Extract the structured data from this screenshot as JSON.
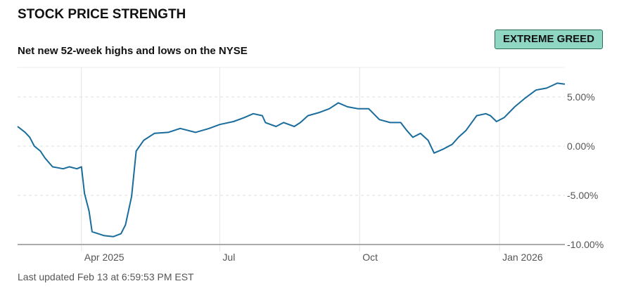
{
  "header": {
    "title": "STOCK PRICE STRENGTH",
    "subtitle": "Net new 52-week highs and lows on the NYSE",
    "badge": "EXTREME GREED",
    "badge_color": "#8fd6c3"
  },
  "footer": {
    "updated": "Last updated Feb 13 at 6:59:53 PM EST"
  },
  "chart_data": {
    "type": "line",
    "title": "",
    "xlabel": "",
    "ylabel": "",
    "xlim": [
      "2025-02-18",
      "2026-02-13"
    ],
    "ylim": [
      -10,
      8
    ],
    "grid": true,
    "line_color": "#1a6c9c",
    "y_ticks": [
      {
        "v": 5,
        "label": "5.00%"
      },
      {
        "v": 0,
        "label": "0.00%"
      },
      {
        "v": -5,
        "label": "-5.00%"
      },
      {
        "v": -10,
        "label": "-10.00%"
      }
    ],
    "x_ticks": [
      {
        "d": "2025-04-01",
        "label": "Apr 2025"
      },
      {
        "d": "2025-07-01",
        "label": "Jul"
      },
      {
        "d": "2025-10-01",
        "label": "Oct"
      },
      {
        "d": "2026-01-01",
        "label": "Jan 2026"
      }
    ],
    "points": [
      [
        "2025-02-18",
        2.0
      ],
      [
        "2025-02-23",
        1.4
      ],
      [
        "2025-02-26",
        0.9
      ],
      [
        "2025-03-01",
        0.0
      ],
      [
        "2025-03-05",
        -0.5
      ],
      [
        "2025-03-08",
        -1.2
      ],
      [
        "2025-03-13",
        -2.1
      ],
      [
        "2025-03-20",
        -2.3
      ],
      [
        "2025-03-24",
        -2.1
      ],
      [
        "2025-03-29",
        -2.3
      ],
      [
        "2025-04-01",
        -2.1
      ],
      [
        "2025-04-03",
        -4.8
      ],
      [
        "2025-04-06",
        -6.6
      ],
      [
        "2025-04-08",
        -8.7
      ],
      [
        "2025-04-12",
        -8.9
      ],
      [
        "2025-04-16",
        -9.1
      ],
      [
        "2025-04-22",
        -9.2
      ],
      [
        "2025-04-27",
        -8.9
      ],
      [
        "2025-04-30",
        -8.0
      ],
      [
        "2025-05-04",
        -5.1
      ],
      [
        "2025-05-07",
        -0.5
      ],
      [
        "2025-05-12",
        0.6
      ],
      [
        "2025-05-19",
        1.3
      ],
      [
        "2025-05-28",
        1.4
      ],
      [
        "2025-06-05",
        1.8
      ],
      [
        "2025-06-15",
        1.4
      ],
      [
        "2025-06-24",
        1.8
      ],
      [
        "2025-07-01",
        2.2
      ],
      [
        "2025-07-10",
        2.5
      ],
      [
        "2025-07-17",
        2.9
      ],
      [
        "2025-07-23",
        3.3
      ],
      [
        "2025-07-29",
        3.1
      ],
      [
        "2025-07-31",
        2.4
      ],
      [
        "2025-08-07",
        2.0
      ],
      [
        "2025-08-12",
        2.4
      ],
      [
        "2025-08-19",
        2.0
      ],
      [
        "2025-08-23",
        2.4
      ],
      [
        "2025-08-28",
        3.1
      ],
      [
        "2025-09-04",
        3.4
      ],
      [
        "2025-09-11",
        3.8
      ],
      [
        "2025-09-17",
        4.4
      ],
      [
        "2025-09-23",
        4.0
      ],
      [
        "2025-09-30",
        3.8
      ],
      [
        "2025-10-07",
        3.8
      ],
      [
        "2025-10-14",
        2.7
      ],
      [
        "2025-10-21",
        2.4
      ],
      [
        "2025-10-28",
        2.4
      ],
      [
        "2025-11-01",
        1.6
      ],
      [
        "2025-11-05",
        0.9
      ],
      [
        "2025-11-10",
        1.3
      ],
      [
        "2025-11-15",
        0.6
      ],
      [
        "2025-11-19",
        -0.7
      ],
      [
        "2025-11-25",
        -0.3
      ],
      [
        "2025-12-01",
        0.2
      ],
      [
        "2025-12-05",
        0.9
      ],
      [
        "2025-12-10",
        1.6
      ],
      [
        "2025-12-17",
        3.1
      ],
      [
        "2025-12-23",
        3.3
      ],
      [
        "2025-12-26",
        3.1
      ],
      [
        "2025-12-30",
        2.5
      ],
      [
        "2026-01-04",
        2.9
      ],
      [
        "2026-01-11",
        4.0
      ],
      [
        "2026-01-18",
        4.9
      ],
      [
        "2026-01-25",
        5.7
      ],
      [
        "2026-02-01",
        5.9
      ],
      [
        "2026-02-08",
        6.4
      ],
      [
        "2026-02-13",
        6.3
      ]
    ]
  }
}
